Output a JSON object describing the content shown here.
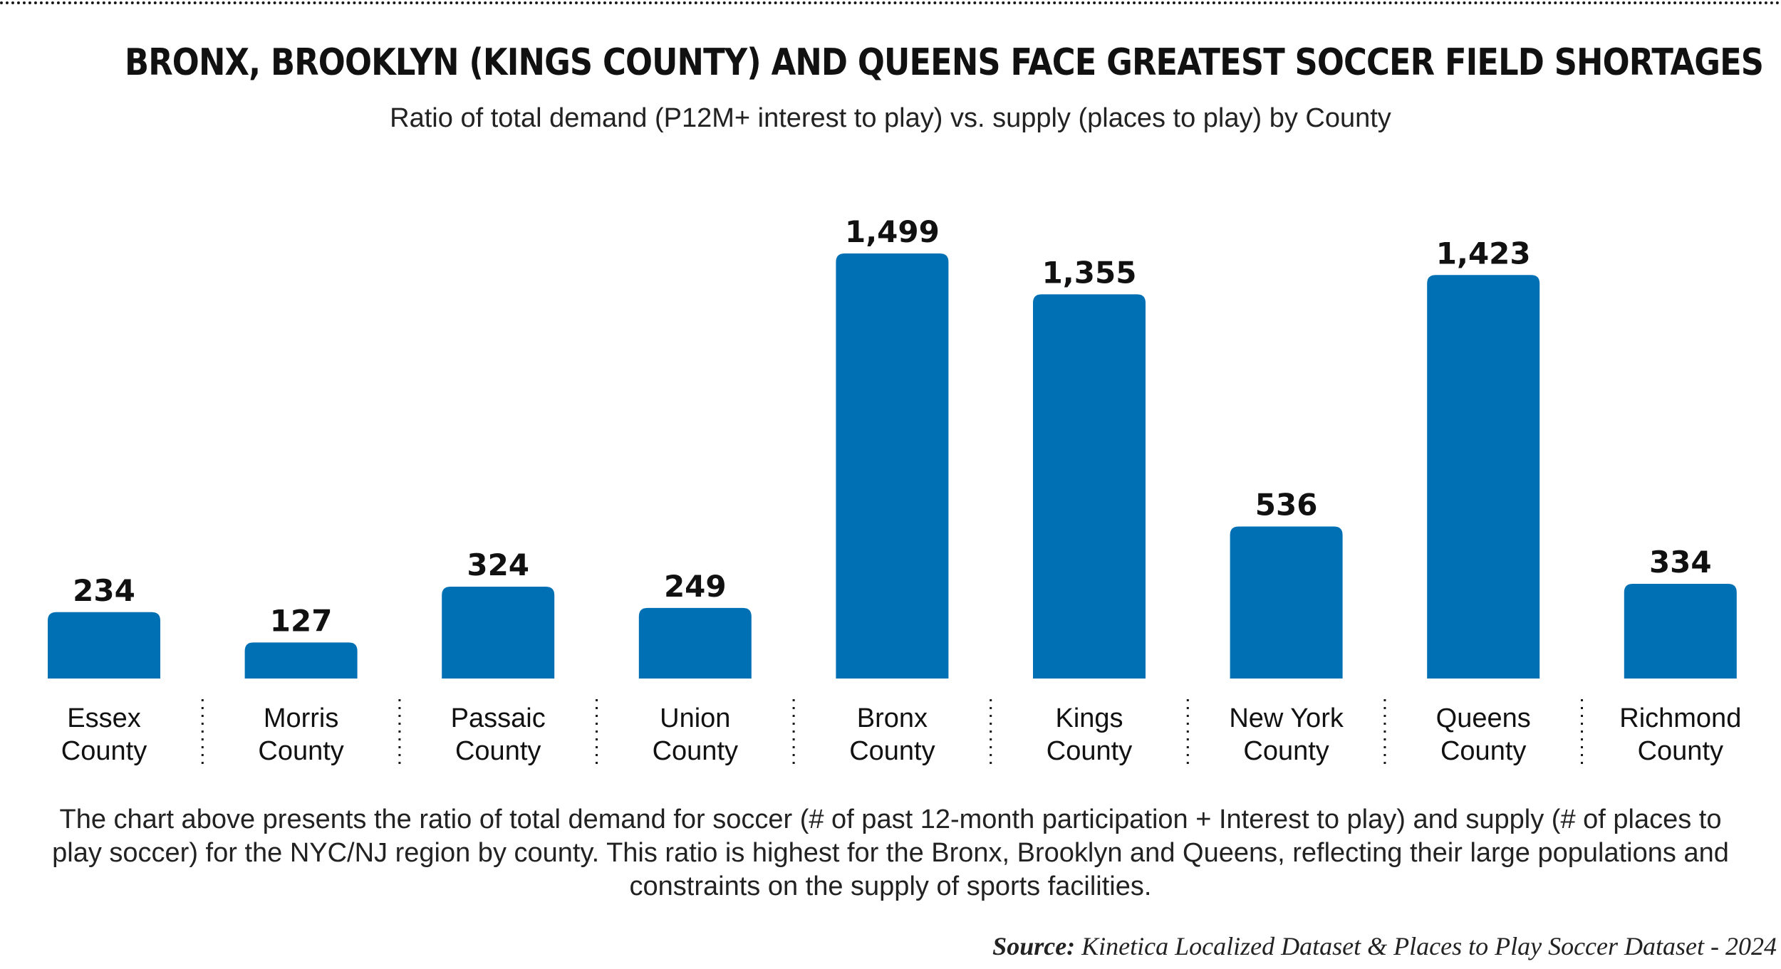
{
  "title": "BRONX, BROOKLYN (KINGS COUNTY) AND QUEENS FACE GREATEST SOCCER FIELD SHORTAGES",
  "subtitle": "Ratio of total demand (P12M+ interest to play) vs. supply (places to play) by County",
  "caption": "The chart above presents the ratio of total demand for soccer (# of past 12-month participation + Interest to play) and supply (# of places to play soccer) for the NYC/NJ region by county. This ratio is highest for the Bronx, Brooklyn and Queens, reflecting their large populations and constraints on the supply of sports facilities.",
  "source": {
    "label": "Source:",
    "text": "Kinetica Localized Dataset & Places to Play Soccer Dataset - 2024"
  },
  "colors": {
    "bar": "#0070b5",
    "text": "#111111",
    "divider": "#1a1a1a"
  },
  "chart_data": {
    "type": "bar",
    "title": "BRONX, BROOKLYN (KINGS COUNTY) AND QUEENS FACE GREATEST SOCCER FIELD SHORTAGES",
    "subtitle": "Ratio of total demand (P12M+ interest to play) vs. supply (places to play) by County",
    "categories": [
      [
        "Essex",
        "County"
      ],
      [
        "Morris",
        "County"
      ],
      [
        "Passaic",
        "County"
      ],
      [
        "Union",
        "County"
      ],
      [
        "Bronx",
        "County"
      ],
      [
        "Kings",
        "County"
      ],
      [
        "New York",
        "County"
      ],
      [
        "Queens",
        "County"
      ],
      [
        "Richmond",
        "County"
      ]
    ],
    "values": [
      234,
      127,
      324,
      249,
      1499,
      1355,
      536,
      1423,
      334
    ],
    "value_labels": [
      "234",
      "127",
      "324",
      "249",
      "1,499",
      "1,355",
      "536",
      "1,423",
      "334"
    ],
    "ylim": [
      0,
      1499
    ],
    "grid": false,
    "legend": "none"
  }
}
